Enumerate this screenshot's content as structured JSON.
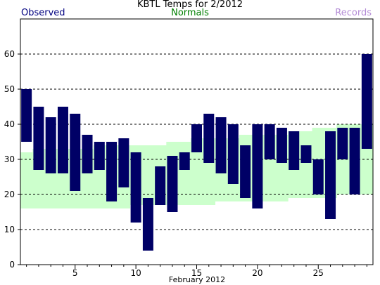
{
  "chart_data": {
    "type": "bar",
    "title": "KBTL Temps for 2/2012",
    "xlabel": "February 2012",
    "ylabel": "",
    "legend": {
      "observed": "Observed",
      "normals": "Normals",
      "records": "Records"
    },
    "colors": {
      "observed": "#000066",
      "normals": "#ccffcc",
      "records": "#b48cd6",
      "grid": "#000000"
    },
    "xlim": [
      1,
      29
    ],
    "ylim": [
      0,
      70
    ],
    "x_ticks": [
      5,
      10,
      15,
      20,
      25
    ],
    "y_ticks": [
      0,
      10,
      20,
      30,
      40,
      50,
      60
    ],
    "grid": "horizontal dashed",
    "normals": [
      {
        "day": 1,
        "low": 16,
        "high": 32
      },
      {
        "day": 2,
        "low": 16,
        "high": 33
      },
      {
        "day": 3,
        "low": 16,
        "high": 33
      },
      {
        "day": 4,
        "low": 16,
        "high": 33
      },
      {
        "day": 5,
        "low": 16,
        "high": 33
      },
      {
        "day": 6,
        "low": 16,
        "high": 33
      },
      {
        "day": 7,
        "low": 16,
        "high": 34
      },
      {
        "day": 8,
        "low": 16,
        "high": 34
      },
      {
        "day": 9,
        "low": 16,
        "high": 34
      },
      {
        "day": 10,
        "low": 17,
        "high": 34
      },
      {
        "day": 11,
        "low": 17,
        "high": 34
      },
      {
        "day": 12,
        "low": 17,
        "high": 34
      },
      {
        "day": 13,
        "low": 17,
        "high": 35
      },
      {
        "day": 14,
        "low": 17,
        "high": 35
      },
      {
        "day": 15,
        "low": 17,
        "high": 36
      },
      {
        "day": 16,
        "low": 17,
        "high": 36
      },
      {
        "day": 17,
        "low": 18,
        "high": 36
      },
      {
        "day": 18,
        "low": 18,
        "high": 36
      },
      {
        "day": 19,
        "low": 18,
        "high": 37
      },
      {
        "day": 20,
        "low": 18,
        "high": 37
      },
      {
        "day": 21,
        "low": 18,
        "high": 37
      },
      {
        "day": 22,
        "low": 18,
        "high": 37
      },
      {
        "day": 23,
        "low": 19,
        "high": 38
      },
      {
        "day": 24,
        "low": 19,
        "high": 38
      },
      {
        "day": 25,
        "low": 19,
        "high": 39
      },
      {
        "day": 26,
        "low": 19,
        "high": 39
      },
      {
        "day": 27,
        "low": 20,
        "high": 40
      },
      {
        "day": 28,
        "low": 20,
        "high": 40
      },
      {
        "day": 29,
        "low": 20,
        "high": 40
      }
    ],
    "observed": [
      {
        "day": 1,
        "low": 35,
        "high": 50
      },
      {
        "day": 2,
        "low": 27,
        "high": 45
      },
      {
        "day": 3,
        "low": 26,
        "high": 42
      },
      {
        "day": 4,
        "low": 26,
        "high": 45
      },
      {
        "day": 5,
        "low": 21,
        "high": 43
      },
      {
        "day": 6,
        "low": 26,
        "high": 37
      },
      {
        "day": 7,
        "low": 27,
        "high": 35
      },
      {
        "day": 8,
        "low": 18,
        "high": 35
      },
      {
        "day": 9,
        "low": 22,
        "high": 36
      },
      {
        "day": 10,
        "low": 12,
        "high": 32
      },
      {
        "day": 11,
        "low": 4,
        "high": 19
      },
      {
        "day": 12,
        "low": 17,
        "high": 28
      },
      {
        "day": 13,
        "low": 15,
        "high": 31
      },
      {
        "day": 14,
        "low": 27,
        "high": 32
      },
      {
        "day": 15,
        "low": 32,
        "high": 40
      },
      {
        "day": 16,
        "low": 29,
        "high": 43
      },
      {
        "day": 17,
        "low": 26,
        "high": 42
      },
      {
        "day": 18,
        "low": 23,
        "high": 40
      },
      {
        "day": 19,
        "low": 19,
        "high": 34
      },
      {
        "day": 20,
        "low": 16,
        "high": 40
      },
      {
        "day": 21,
        "low": 30,
        "high": 40
      },
      {
        "day": 22,
        "low": 29,
        "high": 39
      },
      {
        "day": 23,
        "low": 27,
        "high": 38
      },
      {
        "day": 24,
        "low": 29,
        "high": 34
      },
      {
        "day": 25,
        "low": 20,
        "high": 30
      },
      {
        "day": 26,
        "low": 13,
        "high": 38
      },
      {
        "day": 27,
        "low": 30,
        "high": 39
      },
      {
        "day": 28,
        "low": 20,
        "high": 39
      },
      {
        "day": 29,
        "low": 33,
        "high": 60
      }
    ]
  }
}
